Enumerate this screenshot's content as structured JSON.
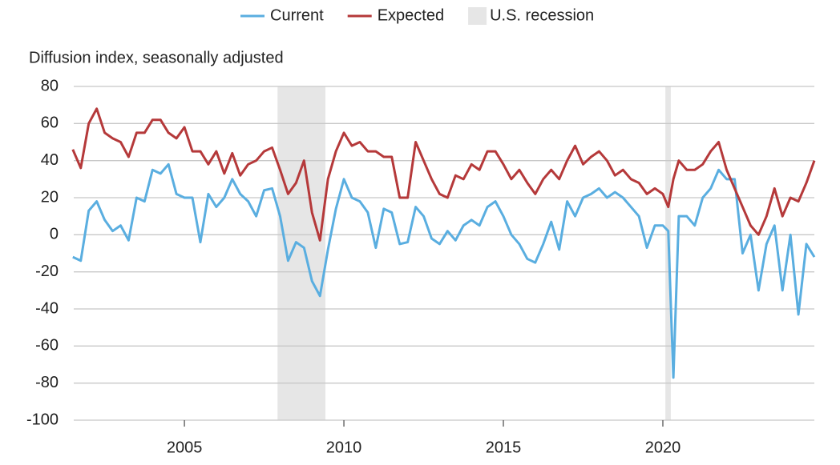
{
  "chart_data": {
    "type": "line",
    "y_axis_label": "Diffusion index, seasonally adjusted",
    "x": [
      2001.5,
      2001.75,
      2002,
      2002.25,
      2002.5,
      2002.75,
      2003,
      2003.25,
      2003.5,
      2003.75,
      2004,
      2004.25,
      2004.5,
      2004.75,
      2005,
      2005.25,
      2005.5,
      2005.75,
      2006,
      2006.25,
      2006.5,
      2006.75,
      2007,
      2007.25,
      2007.5,
      2007.75,
      2008,
      2008.25,
      2008.5,
      2008.75,
      2009,
      2009.25,
      2009.5,
      2009.75,
      2010,
      2010.25,
      2010.5,
      2010.75,
      2011,
      2011.25,
      2011.5,
      2011.75,
      2012,
      2012.25,
      2012.5,
      2012.75,
      2013,
      2013.25,
      2013.5,
      2013.75,
      2014,
      2014.25,
      2014.5,
      2014.75,
      2015,
      2015.25,
      2015.5,
      2015.75,
      2016,
      2016.25,
      2016.5,
      2016.75,
      2017,
      2017.25,
      2017.5,
      2017.75,
      2018,
      2018.25,
      2018.5,
      2018.75,
      2019,
      2019.25,
      2019.5,
      2019.75,
      2020,
      2020.17,
      2020.33,
      2020.5,
      2020.75,
      2021,
      2021.25,
      2021.5,
      2021.75,
      2022,
      2022.25,
      2022.5,
      2022.75,
      2023,
      2023.25,
      2023.5,
      2023.75,
      2024,
      2024.25,
      2024.5,
      2024.75
    ],
    "series": [
      {
        "name": "Current",
        "color": "#5aaee0",
        "values": [
          -12,
          -14,
          13,
          18,
          8,
          2,
          5,
          -3,
          20,
          18,
          35,
          33,
          38,
          22,
          20,
          20,
          -4,
          22,
          15,
          20,
          30,
          22,
          18,
          10,
          24,
          25,
          10,
          -14,
          -4,
          -7,
          -25,
          -33,
          -8,
          14,
          30,
          20,
          18,
          12,
          -7,
          14,
          12,
          -5,
          -4,
          15,
          10,
          -2,
          -5,
          2,
          -3,
          5,
          8,
          5,
          15,
          18,
          10,
          0,
          -5,
          -13,
          -15,
          -5,
          7,
          -8,
          18,
          10,
          20,
          22,
          25,
          20,
          23,
          20,
          15,
          10,
          -7,
          5,
          5,
          2,
          -77,
          10,
          10,
          5,
          20,
          25,
          35,
          30,
          30,
          -10,
          0,
          -30,
          -5,
          5,
          -30,
          0,
          -43,
          -5,
          -12
        ]
      },
      {
        "name": "Expected",
        "color": "#b5393a",
        "values": [
          46,
          36,
          60,
          68,
          55,
          52,
          50,
          42,
          55,
          55,
          62,
          62,
          55,
          52,
          58,
          45,
          45,
          38,
          45,
          33,
          44,
          32,
          38,
          40,
          45,
          47,
          35,
          22,
          28,
          40,
          12,
          -3,
          30,
          45,
          55,
          48,
          50,
          45,
          45,
          42,
          42,
          20,
          20,
          50,
          40,
          30,
          22,
          20,
          32,
          30,
          38,
          35,
          45,
          45,
          38,
          30,
          35,
          28,
          22,
          30,
          35,
          30,
          40,
          48,
          38,
          42,
          45,
          40,
          32,
          35,
          30,
          28,
          22,
          25,
          22,
          15,
          30,
          40,
          35,
          35,
          38,
          45,
          50,
          35,
          25,
          15,
          5,
          0,
          10,
          25,
          10,
          20,
          18,
          28,
          40
        ]
      }
    ],
    "recessions": {
      "name": "U.S. recession",
      "color": "#e6e6e6",
      "periods": [
        [
          2007.92,
          2009.42
        ],
        [
          2020.08,
          2020.25
        ]
      ]
    },
    "xlim": [
      2001.53,
      2024.75
    ],
    "xticks": [
      2005,
      2010,
      2015,
      2020
    ],
    "ylim": [
      -100,
      80
    ],
    "yticks": [
      -100,
      -80,
      -60,
      -40,
      -20,
      0,
      20,
      40,
      60,
      80
    ],
    "grid": true,
    "legend": "top"
  }
}
